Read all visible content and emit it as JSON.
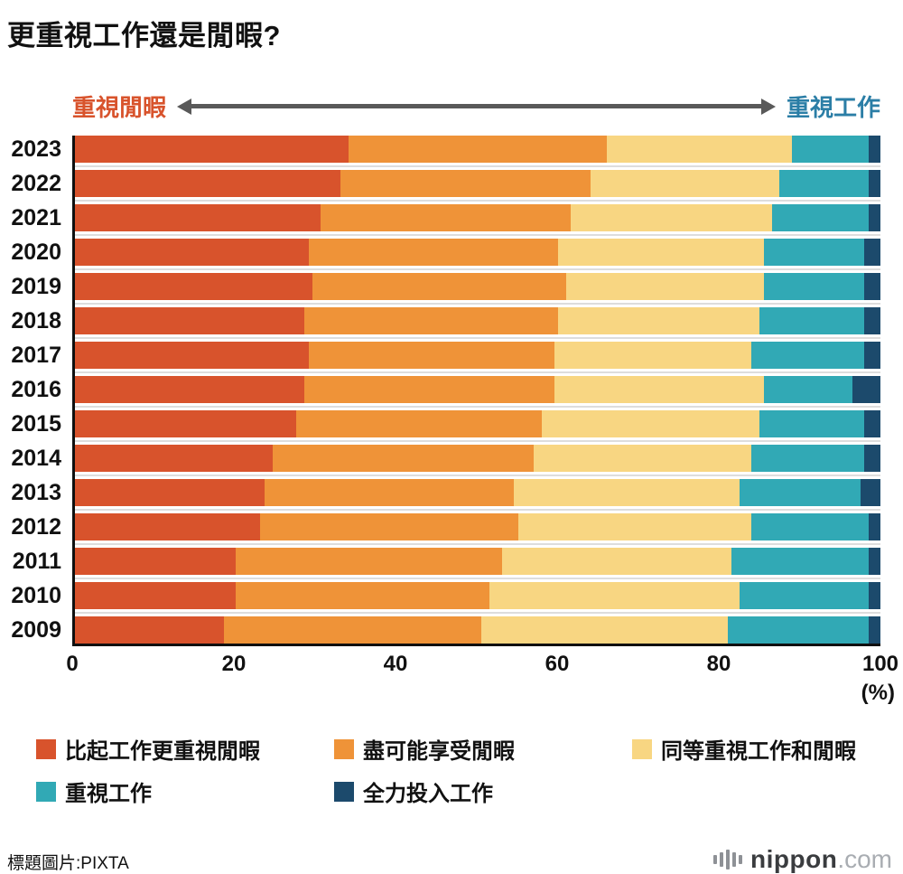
{
  "title": "更重視工作還是閒暇?",
  "header": {
    "left_label": "重視閒暇",
    "right_label": "重視工作",
    "left_color": "#D8532C",
    "right_color": "#2B7EA6",
    "arrow_color": "#595959"
  },
  "chart_data": {
    "type": "bar",
    "stacked": true,
    "orientation": "horizontal",
    "categories": [
      "2023",
      "2022",
      "2021",
      "2020",
      "2019",
      "2018",
      "2017",
      "2016",
      "2015",
      "2014",
      "2013",
      "2012",
      "2011",
      "2010",
      "2009"
    ],
    "series": [
      {
        "name": "比起工作更重視閒暇",
        "color": "#D8532C",
        "values": [
          34,
          33,
          30.5,
          29,
          29.5,
          28.5,
          29,
          28.5,
          27.5,
          24.5,
          23.5,
          23,
          20,
          20,
          18.5
        ]
      },
      {
        "name": "盡可能享受閒暇",
        "color": "#EF9338",
        "values": [
          32,
          31,
          31,
          31,
          31.5,
          31.5,
          30.5,
          31,
          30.5,
          32.5,
          31,
          32,
          33,
          31.5,
          32
        ]
      },
      {
        "name": "同等重視工作和閒暇",
        "color": "#F8D682",
        "values": [
          23,
          23.5,
          25,
          25.5,
          24.5,
          25,
          24.5,
          26,
          27,
          27,
          28,
          29,
          28.5,
          31,
          30.5
        ]
      },
      {
        "name": "重視工作",
        "color": "#31A9B5",
        "values": [
          9.5,
          11,
          12,
          12.5,
          12.5,
          13,
          14,
          11,
          13,
          14,
          15,
          14.5,
          17,
          16,
          17.5
        ]
      },
      {
        "name": "全力投入工作",
        "color": "#1C4A6C",
        "values": [
          1.5,
          1.5,
          1.5,
          2,
          2,
          2,
          2,
          3.5,
          2,
          2,
          2.5,
          1.5,
          1.5,
          1.5,
          1.5
        ]
      }
    ],
    "xlim": [
      0,
      100
    ],
    "x_ticks": [
      0,
      20,
      40,
      60,
      80,
      100
    ],
    "x_unit": "(%)",
    "grid": false,
    "legend_position": "bottom"
  },
  "footer": {
    "credit": "標題圖片:PIXTA",
    "logo_name": "nippon",
    "logo_suffix": ".com"
  }
}
